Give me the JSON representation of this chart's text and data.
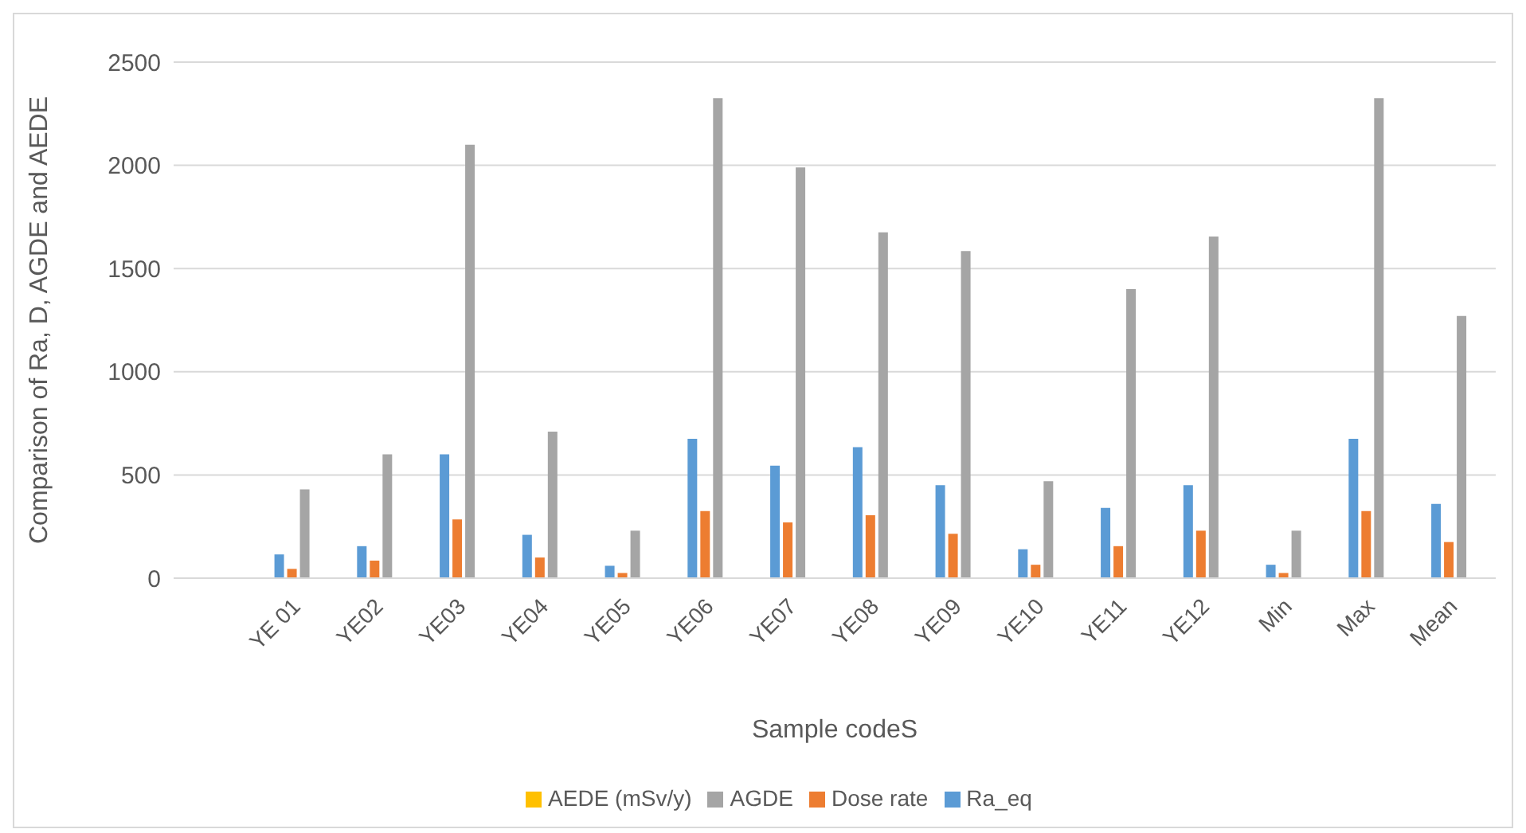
{
  "chart_data": {
    "type": "bar",
    "xlabel": "Sample codeS",
    "ylabel": "Comparison of Ra, D, AGDE and AEDE",
    "categories": [
      null,
      "YE 01",
      "YE02",
      "YE03",
      "YE04",
      "YE05",
      "YE06",
      "YE07",
      "YE08",
      "YE09",
      "YE10",
      "YE11",
      "YE12",
      "Min",
      "Max",
      "Mean"
    ],
    "series": [
      {
        "name": "Ra_eq",
        "color": "#5b9bd5",
        "values": [
          null,
          115,
          155,
          600,
          210,
          60,
          675,
          545,
          635,
          450,
          140,
          340,
          450,
          65,
          675,
          360
        ]
      },
      {
        "name": "Dose rate",
        "color": "#ed7d31",
        "values": [
          null,
          45,
          85,
          285,
          100,
          25,
          325,
          270,
          305,
          215,
          65,
          155,
          230,
          25,
          325,
          175
        ]
      },
      {
        "name": "AGDE",
        "color": "#a5a5a5",
        "values": [
          null,
          430,
          600,
          2100,
          710,
          230,
          2325,
          1990,
          1675,
          1585,
          470,
          1400,
          1655,
          230,
          2325,
          1270
        ]
      },
      {
        "name": "AEDE (mSv/y)",
        "color": "#ffc000",
        "values": [
          null,
          0,
          0,
          0,
          0,
          0,
          0,
          0,
          0,
          0,
          0,
          0,
          0,
          0,
          0,
          0
        ]
      }
    ],
    "ylim": [
      0,
      2500
    ],
    "yticks": [
      0,
      500,
      1000,
      1500,
      2000,
      2500
    ],
    "grid": "y",
    "legend": "bottom"
  }
}
